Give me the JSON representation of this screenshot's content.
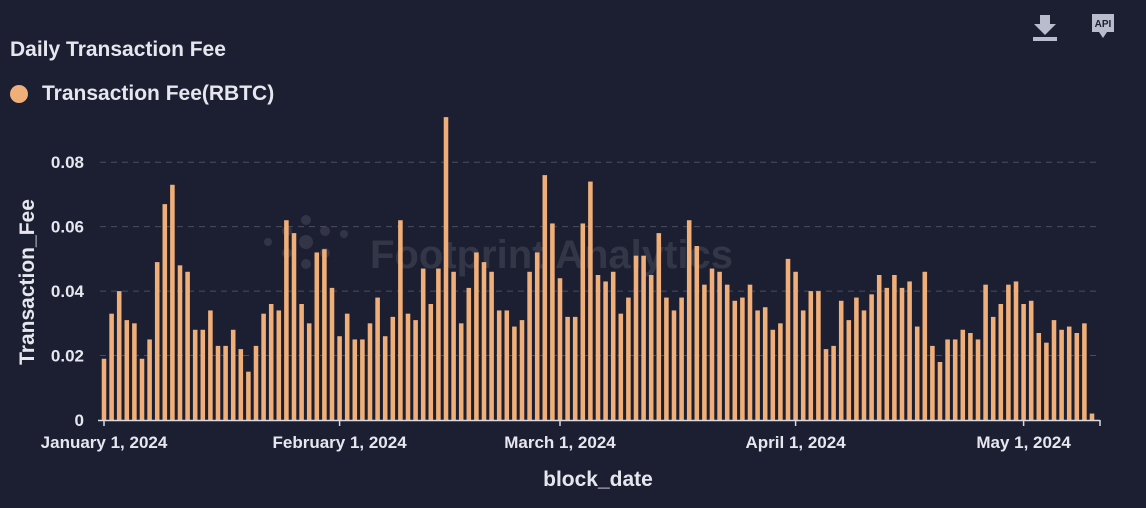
{
  "title": "Daily Transaction Fee",
  "legend": {
    "label": "Transaction Fee(RBTC)",
    "color": "#f0ae78"
  },
  "toolbar": {
    "download_icon": "download-icon",
    "api_icon": "api-icon",
    "api_label": "API"
  },
  "watermark": "Footprint Analytics",
  "colors": {
    "background": "#1c1f32",
    "bar": "#f0ae78",
    "grid": "#4a4d60",
    "text": "#e6e7ee"
  },
  "chart_data": {
    "type": "bar",
    "title": "Daily Transaction Fee",
    "xlabel": "block_date",
    "ylabel": "Transaction_Fee",
    "x_start": "2024-01-01",
    "ylim": [
      0,
      0.09
    ],
    "yticks": [
      0,
      0.02,
      0.04,
      0.06,
      0.08
    ],
    "ytick_labels": [
      "0",
      "0.02",
      "0.04",
      "0.06",
      "0.08"
    ],
    "xticks": [
      {
        "date": "2024-01-01",
        "label": "January 1, 2024"
      },
      {
        "date": "2024-02-01",
        "label": "February 1, 2024"
      },
      {
        "date": "2024-03-01",
        "label": "March 1, 2024"
      },
      {
        "date": "2024-04-01",
        "label": "April 1, 2024"
      },
      {
        "date": "2024-05-01",
        "label": "May 1, 2024"
      }
    ],
    "grid": true,
    "legend_position": "top-left",
    "series": [
      {
        "name": "Transaction Fee(RBTC)",
        "values": [
          0.019,
          0.033,
          0.04,
          0.031,
          0.03,
          0.019,
          0.025,
          0.049,
          0.067,
          0.073,
          0.048,
          0.046,
          0.028,
          0.028,
          0.034,
          0.023,
          0.023,
          0.028,
          0.022,
          0.015,
          0.023,
          0.033,
          0.036,
          0.034,
          0.062,
          0.058,
          0.036,
          0.03,
          0.052,
          0.053,
          0.041,
          0.026,
          0.033,
          0.025,
          0.025,
          0.03,
          0.038,
          0.026,
          0.032,
          0.062,
          0.033,
          0.031,
          0.047,
          0.036,
          0.047,
          0.094,
          0.046,
          0.03,
          0.041,
          0.052,
          0.049,
          0.046,
          0.034,
          0.034,
          0.029,
          0.031,
          0.046,
          0.052,
          0.076,
          0.061,
          0.044,
          0.032,
          0.032,
          0.061,
          0.074,
          0.045,
          0.043,
          0.046,
          0.033,
          0.038,
          0.051,
          0.051,
          0.045,
          0.058,
          0.038,
          0.034,
          0.038,
          0.062,
          0.054,
          0.042,
          0.047,
          0.046,
          0.042,
          0.037,
          0.038,
          0.042,
          0.034,
          0.035,
          0.028,
          0.03,
          0.05,
          0.046,
          0.034,
          0.04,
          0.04,
          0.022,
          0.023,
          0.037,
          0.031,
          0.038,
          0.034,
          0.039,
          0.045,
          0.041,
          0.045,
          0.041,
          0.043,
          0.029,
          0.046,
          0.023,
          0.018,
          0.025,
          0.025,
          0.028,
          0.027,
          0.025,
          0.042,
          0.032,
          0.036,
          0.042,
          0.043,
          0.036,
          0.037,
          0.027,
          0.024,
          0.031,
          0.028,
          0.029,
          0.027,
          0.03,
          0.002
        ]
      }
    ]
  }
}
